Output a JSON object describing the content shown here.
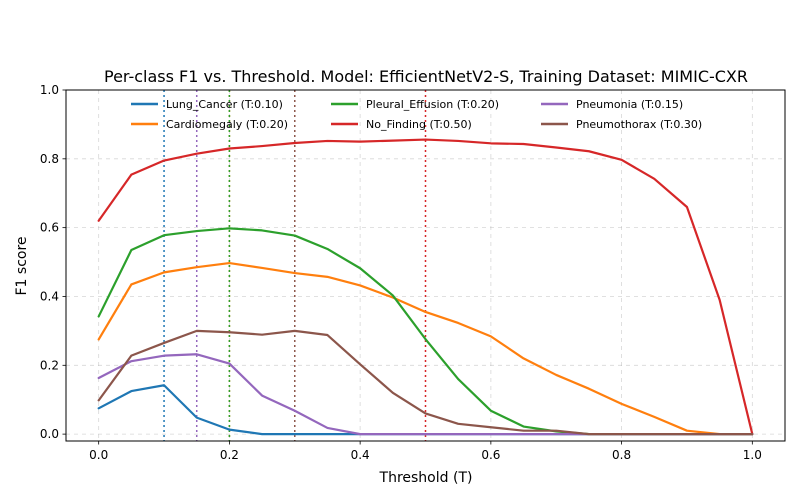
{
  "chart_data": {
    "type": "line",
    "title": "Per-class F1 vs. Threshold. Model: EfficientNetV2-S, Training Dataset: MIMIC-CXR",
    "xlabel": "Threshold (T)",
    "ylabel": "F1 score",
    "xlim": [
      -0.05,
      1.05
    ],
    "ylim": [
      -0.02,
      1.0
    ],
    "xticks": [
      0.0,
      0.2,
      0.4,
      0.6,
      0.8,
      1.0
    ],
    "xtick_labels": [
      "0.0",
      "0.2",
      "0.4",
      "0.6",
      "0.8",
      "1.0"
    ],
    "yticks": [
      0.0,
      0.2,
      0.4,
      0.6,
      0.8,
      1.0
    ],
    "ytick_labels": [
      "0.0",
      "0.2",
      "0.4",
      "0.6",
      "0.8",
      "1.0"
    ],
    "grid": true,
    "legend_location": "top",
    "x": [
      0.0,
      0.05,
      0.1,
      0.15,
      0.2,
      0.25,
      0.3,
      0.35,
      0.4,
      0.45,
      0.5,
      0.55,
      0.6,
      0.65,
      0.7,
      0.75,
      0.8,
      0.85,
      0.9,
      0.95,
      1.0
    ],
    "series": [
      {
        "name": "Lung_Cancer",
        "label": "Lung_Cancer (T:0.10)",
        "threshold": 0.1,
        "color": "#1f77b4",
        "values": [
          0.075,
          0.125,
          0.142,
          0.048,
          0.013,
          0.0,
          0.0,
          0.0,
          0.0,
          0.0,
          0.0,
          0.0,
          0.0,
          0.0,
          0.0,
          0.0,
          0.0,
          0.0,
          0.0,
          0.0,
          0.0
        ]
      },
      {
        "name": "Cardiomegaly",
        "label": "Cardiomegaly (T:0.20)",
        "threshold": 0.2,
        "color": "#ff7f0e",
        "values": [
          0.275,
          0.435,
          0.47,
          0.485,
          0.497,
          0.483,
          0.468,
          0.457,
          0.432,
          0.397,
          0.355,
          0.323,
          0.284,
          0.22,
          0.172,
          0.132,
          0.088,
          0.05,
          0.01,
          0.0,
          0.0
        ]
      },
      {
        "name": "Pleural_Effusion",
        "label": "Pleural_Effusion (T:0.20)",
        "threshold": 0.2,
        "color": "#2ca02c",
        "values": [
          0.342,
          0.535,
          0.578,
          0.59,
          0.598,
          0.592,
          0.577,
          0.538,
          0.482,
          0.403,
          0.276,
          0.16,
          0.068,
          0.022,
          0.008,
          0.0,
          0.0,
          0.0,
          0.0,
          0.0,
          0.0
        ]
      },
      {
        "name": "No_Finding",
        "label": "No_Finding (T:0.50)",
        "threshold": 0.5,
        "color": "#d62728",
        "values": [
          0.62,
          0.754,
          0.795,
          0.815,
          0.83,
          0.837,
          0.846,
          0.852,
          0.85,
          0.853,
          0.856,
          0.852,
          0.845,
          0.843,
          0.833,
          0.822,
          0.797,
          0.742,
          0.66,
          0.39,
          0.0
        ]
      },
      {
        "name": "Pneumonia",
        "label": "Pneumonia (T:0.15)",
        "threshold": 0.15,
        "color": "#9467bd",
        "values": [
          0.163,
          0.212,
          0.228,
          0.232,
          0.205,
          0.112,
          0.068,
          0.018,
          0.0,
          0.0,
          0.0,
          0.0,
          0.0,
          0.0,
          0.0,
          0.0,
          0.0,
          0.0,
          0.0,
          0.0,
          0.0
        ]
      },
      {
        "name": "Pneumothorax",
        "label": "Pneumothorax (T:0.30)",
        "threshold": 0.3,
        "color": "#8c564b",
        "values": [
          0.098,
          0.228,
          0.265,
          0.3,
          0.296,
          0.289,
          0.3,
          0.288,
          0.203,
          0.12,
          0.06,
          0.03,
          0.02,
          0.01,
          0.01,
          0.0,
          0.0,
          0.0,
          0.0,
          0.0,
          0.0
        ]
      }
    ]
  }
}
